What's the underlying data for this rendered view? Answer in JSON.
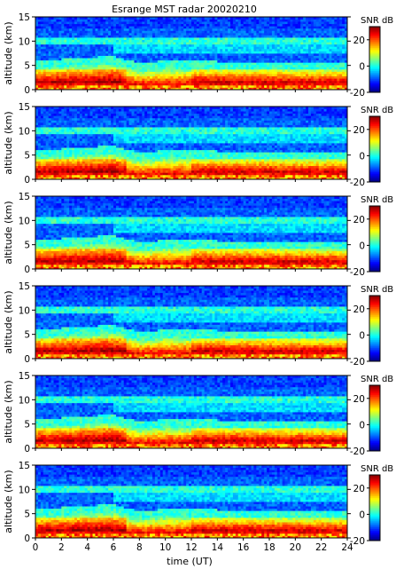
{
  "figure": {
    "title": "Esrange MST radar 20020210"
  },
  "chart_data": {
    "type": "heatmap",
    "title": "Esrange MST radar 20020210",
    "xlabel": "time (UT)",
    "ylabel": "altitude (km)",
    "xlim": [
      0,
      24
    ],
    "ylim": [
      0,
      15
    ],
    "x_ticks": [
      0,
      2,
      4,
      6,
      8,
      10,
      12,
      14,
      16,
      18,
      20,
      22,
      24
    ],
    "y_ticks": [
      0,
      5,
      10,
      15
    ],
    "colorbar": {
      "label": "SNR dB",
      "ticks": [
        20,
        0,
        -20
      ],
      "range": [
        -20,
        30
      ],
      "colormap": "jet"
    },
    "panels": [
      {
        "id": 1,
        "quantity": "SNR dB"
      },
      {
        "id": 2,
        "quantity": "SNR dB"
      },
      {
        "id": 3,
        "quantity": "SNR dB"
      },
      {
        "id": 4,
        "quantity": "SNR dB"
      },
      {
        "id": 5,
        "quantity": "SNR dB"
      },
      {
        "id": 6,
        "quantity": "SNR dB"
      }
    ],
    "features": {
      "boundary_layer_top_km": [
        {
          "t": 0,
          "h": 4.5
        },
        {
          "t": 6,
          "h": 5.5
        },
        {
          "t": 8,
          "h": 4.0
        },
        {
          "t": 10,
          "h": 4.5
        },
        {
          "t": 24,
          "h": 4.0
        }
      ],
      "strong_layer_km": [
        2,
        4
      ],
      "tropopause_layer_km": 10,
      "upper_layer_km": 8.5
    }
  }
}
